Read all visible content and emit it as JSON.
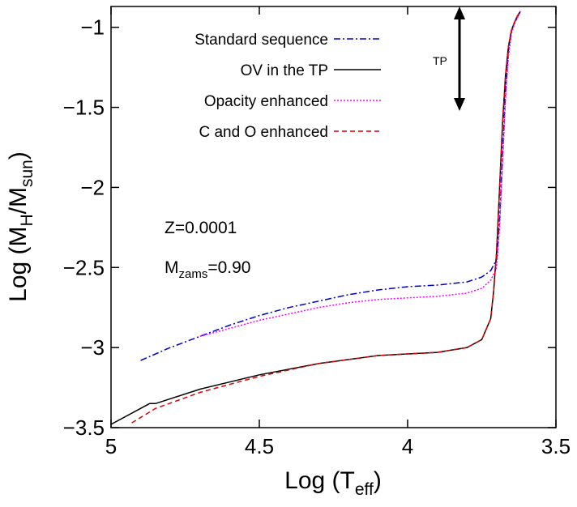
{
  "chart_data": {
    "type": "line",
    "xlabel": [
      "Log (T",
      "eff",
      ")"
    ],
    "ylabel": [
      "Log (M",
      "H",
      "/M",
      "sun",
      ")"
    ],
    "xlim": [
      5,
      3.5
    ],
    "ylim": [
      -3.5,
      -0.87
    ],
    "xticks": [
      5,
      4.5,
      4,
      3.5
    ],
    "yticks": [
      {
        "value": -3.5,
        "label": "−3.5"
      },
      {
        "value": -3,
        "label": "−3"
      },
      {
        "value": -2.5,
        "label": "−2.5"
      },
      {
        "value": -2,
        "label": "−2"
      },
      {
        "value": -1.5,
        "label": "−1.5"
      },
      {
        "value": -1,
        "label": "−1"
      }
    ],
    "legend": "upper left",
    "annotations": {
      "z": "Z=0.0001",
      "mass": [
        "M",
        "zams",
        "=0.90"
      ],
      "tp": "TP"
    },
    "series": [
      {
        "name": "Standard sequence",
        "color": "#0000cc",
        "dash": "8,3,2,3",
        "x": [
          4.9,
          4.8,
          4.7,
          4.6,
          4.5,
          4.4,
          4.3,
          4.2,
          4.1,
          4.0,
          3.9,
          3.8,
          3.75,
          3.72,
          3.7,
          3.69,
          3.68,
          3.67,
          3.66,
          3.65,
          3.64,
          3.63,
          3.62
        ],
        "values": [
          -3.08,
          -3.0,
          -2.93,
          -2.86,
          -2.8,
          -2.75,
          -2.71,
          -2.67,
          -2.64,
          -2.62,
          -2.61,
          -2.59,
          -2.56,
          -2.52,
          -2.45,
          -2.2,
          -1.8,
          -1.4,
          -1.15,
          -1.02,
          -0.97,
          -0.94,
          -0.9
        ]
      },
      {
        "name": "OV in the TP",
        "color": "#000000",
        "dash": "",
        "x": [
          5.0,
          4.87,
          4.85,
          4.7,
          4.5,
          4.3,
          4.1,
          4.0,
          3.9,
          3.8,
          3.75,
          3.72,
          3.71,
          3.7,
          3.69,
          3.68,
          3.67,
          3.66,
          3.65,
          3.64,
          3.63,
          3.62
        ],
        "values": [
          -3.48,
          -3.35,
          -3.35,
          -3.26,
          -3.17,
          -3.1,
          -3.05,
          -3.04,
          -3.03,
          -3.0,
          -2.95,
          -2.82,
          -2.65,
          -2.4,
          -2.0,
          -1.6,
          -1.3,
          -1.12,
          -1.02,
          -0.97,
          -0.93,
          -0.9
        ]
      },
      {
        "name": "Opacity enhanced",
        "color": "#ff00ff",
        "dash": "2,2",
        "x": [
          4.7,
          4.6,
          4.5,
          4.4,
          4.3,
          4.2,
          4.1,
          4.0,
          3.9,
          3.8,
          3.75,
          3.72,
          3.7,
          3.69,
          3.68,
          3.67,
          3.66,
          3.65,
          3.64,
          3.63,
          3.62
        ],
        "values": [
          -2.93,
          -2.88,
          -2.83,
          -2.79,
          -2.75,
          -2.72,
          -2.7,
          -2.69,
          -2.68,
          -2.66,
          -2.63,
          -2.58,
          -2.5,
          -2.25,
          -1.85,
          -1.45,
          -1.18,
          -1.04,
          -0.98,
          -0.94,
          -0.9
        ]
      },
      {
        "name": "C and O enhanced",
        "color": "#dd0000",
        "dash": "6,4",
        "x": [
          4.93,
          4.85,
          4.7,
          4.5,
          4.3,
          4.1,
          4.0,
          3.9,
          3.8,
          3.75,
          3.72,
          3.71,
          3.7,
          3.69,
          3.68,
          3.67,
          3.66,
          3.65,
          3.64,
          3.63,
          3.62
        ],
        "values": [
          -3.47,
          -3.38,
          -3.28,
          -3.18,
          -3.1,
          -3.05,
          -3.04,
          -3.03,
          -3.0,
          -2.95,
          -2.82,
          -2.65,
          -2.4,
          -2.0,
          -1.6,
          -1.3,
          -1.12,
          -1.02,
          -0.97,
          -0.93,
          -0.9
        ]
      }
    ]
  }
}
